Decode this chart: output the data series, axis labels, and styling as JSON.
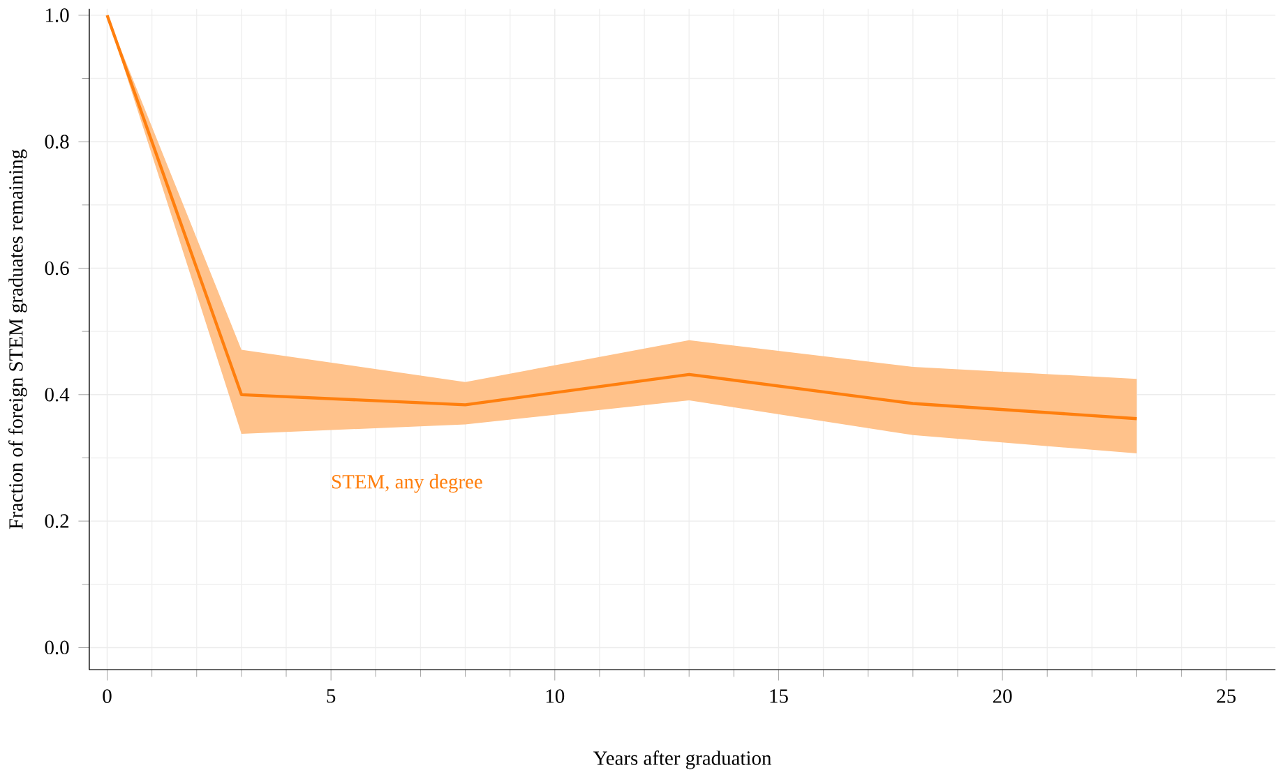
{
  "chart_data": {
    "type": "line",
    "xlabel": "Years after graduation",
    "ylabel": "Fraction of foreign STEM graduates remaining",
    "xlim": [
      -0.4,
      26.1
    ],
    "ylim": [
      -0.035,
      1.01
    ],
    "xticks": [
      0,
      5,
      10,
      15,
      20,
      25
    ],
    "yticks": [
      {
        "value": 0,
        "label": "0.0"
      },
      0.2,
      0.4,
      0.6,
      0.8,
      {
        "value": 1,
        "label": "1.0"
      }
    ],
    "grid": true,
    "marker": "none",
    "line_style": "solid",
    "series": [
      {
        "name": "STEM, any degree",
        "color": "#ff7f0e",
        "x": [
          0,
          3,
          8,
          13,
          18,
          23
        ],
        "values": [
          1.0,
          0.4,
          0.384,
          0.432,
          0.386,
          0.362
        ],
        "upper": [
          1.0,
          0.471,
          0.42,
          0.486,
          0.444,
          0.425
        ],
        "lower": [
          1.0,
          0.338,
          0.353,
          0.391,
          0.336,
          0.307
        ]
      }
    ]
  }
}
